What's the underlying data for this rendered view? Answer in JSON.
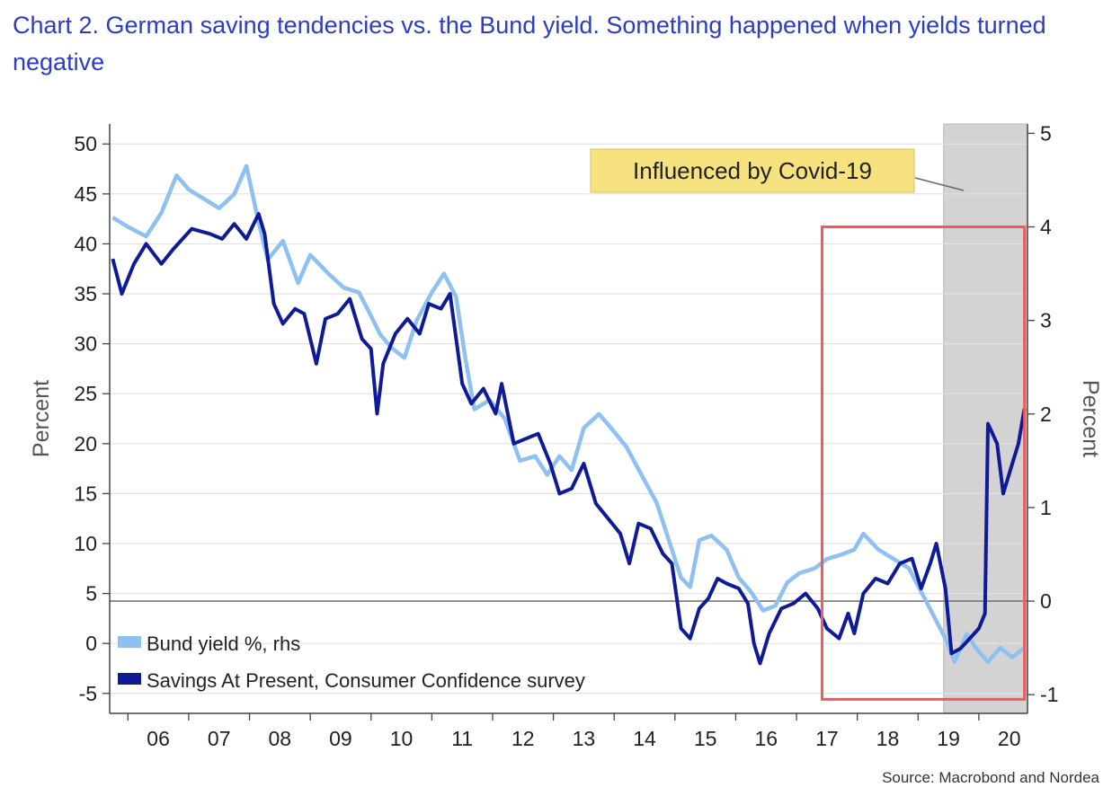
{
  "title": "Chart 2. German saving tendencies vs. the Bund yield. Something happened when yields turned negative",
  "source": "Source: Macrobond and Nordea",
  "chart_data": {
    "type": "line",
    "title": "Chart 2. German saving tendencies vs. the Bund yield. Something happened when yields turned negative",
    "ylabel_left": "Percent",
    "ylabel_right": "Percent",
    "ylim_left": [
      -7,
      52
    ],
    "ylim_right": [
      -1.2,
      5.1
    ],
    "left_ticks": [
      50,
      45,
      40,
      35,
      30,
      25,
      20,
      15,
      10,
      5,
      0,
      -5
    ],
    "right_ticks": [
      5,
      4,
      3,
      2,
      1,
      0,
      -1
    ],
    "x_tick_labels": [
      "06",
      "07",
      "08",
      "09",
      "10",
      "11",
      "12",
      "13",
      "14",
      "15",
      "16",
      "17",
      "18",
      "19",
      "20"
    ],
    "x_range": [
      2005.7,
      2020.8
    ],
    "zero_line_right": 0,
    "legend": [
      {
        "label": "Bund yield %, rhs",
        "color": "#8ec1f2"
      },
      {
        "label": "Savings At Present, Consumer Confidence survey",
        "color": "#0f1b96"
      }
    ],
    "annotations": [
      {
        "text": "Influenced by Covid-19",
        "shaded_from": 2019.42,
        "shaded_to": 2020.8
      },
      {
        "type": "highlight_box",
        "from": 2017.42,
        "to": 2020.75,
        "y_top": 4.0,
        "y_bottom": -1.05
      }
    ],
    "series": [
      {
        "name": "Bund yield %, rhs",
        "axis": "right",
        "color": "#8ec1f2",
        "points": [
          [
            2005.75,
            4.1
          ],
          [
            2006.0,
            4.0
          ],
          [
            2006.3,
            3.9
          ],
          [
            2006.55,
            4.15
          ],
          [
            2006.8,
            4.55
          ],
          [
            2007.0,
            4.4
          ],
          [
            2007.25,
            4.3
          ],
          [
            2007.5,
            4.2
          ],
          [
            2007.75,
            4.35
          ],
          [
            2007.95,
            4.65
          ],
          [
            2008.15,
            4.05
          ],
          [
            2008.3,
            3.65
          ],
          [
            2008.55,
            3.85
          ],
          [
            2008.8,
            3.4
          ],
          [
            2009.0,
            3.7
          ],
          [
            2009.3,
            3.5
          ],
          [
            2009.55,
            3.35
          ],
          [
            2009.8,
            3.3
          ],
          [
            2010.0,
            3.05
          ],
          [
            2010.15,
            2.85
          ],
          [
            2010.35,
            2.7
          ],
          [
            2010.55,
            2.6
          ],
          [
            2010.75,
            3.0
          ],
          [
            2011.0,
            3.3
          ],
          [
            2011.2,
            3.5
          ],
          [
            2011.4,
            3.25
          ],
          [
            2011.55,
            2.6
          ],
          [
            2011.7,
            2.05
          ],
          [
            2011.95,
            2.15
          ],
          [
            2012.2,
            1.95
          ],
          [
            2012.45,
            1.5
          ],
          [
            2012.7,
            1.55
          ],
          [
            2012.9,
            1.35
          ],
          [
            2013.1,
            1.55
          ],
          [
            2013.3,
            1.4
          ],
          [
            2013.5,
            1.85
          ],
          [
            2013.75,
            2.0
          ],
          [
            2013.95,
            1.85
          ],
          [
            2014.2,
            1.65
          ],
          [
            2014.45,
            1.35
          ],
          [
            2014.7,
            1.05
          ],
          [
            2014.9,
            0.65
          ],
          [
            2015.1,
            0.25
          ],
          [
            2015.25,
            0.15
          ],
          [
            2015.4,
            0.65
          ],
          [
            2015.6,
            0.7
          ],
          [
            2015.85,
            0.55
          ],
          [
            2016.05,
            0.25
          ],
          [
            2016.25,
            0.1
          ],
          [
            2016.45,
            -0.1
          ],
          [
            2016.65,
            -0.05
          ],
          [
            2016.85,
            0.2
          ],
          [
            2017.05,
            0.3
          ],
          [
            2017.3,
            0.35
          ],
          [
            2017.5,
            0.45
          ],
          [
            2017.75,
            0.5
          ],
          [
            2017.95,
            0.55
          ],
          [
            2018.1,
            0.72
          ],
          [
            2018.35,
            0.55
          ],
          [
            2018.6,
            0.45
          ],
          [
            2018.85,
            0.35
          ],
          [
            2019.05,
            0.1
          ],
          [
            2019.25,
            -0.15
          ],
          [
            2019.45,
            -0.4
          ],
          [
            2019.6,
            -0.65
          ],
          [
            2019.8,
            -0.35
          ],
          [
            2019.95,
            -0.5
          ],
          [
            2020.15,
            -0.65
          ],
          [
            2020.35,
            -0.5
          ],
          [
            2020.55,
            -0.6
          ],
          [
            2020.75,
            -0.5
          ]
        ]
      },
      {
        "name": "Savings At Present, Consumer Confidence survey",
        "axis": "left",
        "color": "#0f1b96",
        "points": [
          [
            2005.75,
            38.5
          ],
          [
            2005.9,
            35.0
          ],
          [
            2006.1,
            38.0
          ],
          [
            2006.3,
            40.0
          ],
          [
            2006.55,
            38.0
          ],
          [
            2006.75,
            39.5
          ],
          [
            2006.9,
            40.5
          ],
          [
            2007.05,
            41.5
          ],
          [
            2007.35,
            41.0
          ],
          [
            2007.55,
            40.5
          ],
          [
            2007.75,
            42.0
          ],
          [
            2007.95,
            40.5
          ],
          [
            2008.15,
            43.0
          ],
          [
            2008.25,
            41.0
          ],
          [
            2008.4,
            34.0
          ],
          [
            2008.55,
            32.0
          ],
          [
            2008.75,
            33.5
          ],
          [
            2008.9,
            33.0
          ],
          [
            2009.1,
            28.0
          ],
          [
            2009.25,
            32.5
          ],
          [
            2009.45,
            33.0
          ],
          [
            2009.65,
            34.5
          ],
          [
            2009.85,
            30.5
          ],
          [
            2010.0,
            29.5
          ],
          [
            2010.1,
            23.0
          ],
          [
            2010.2,
            28.0
          ],
          [
            2010.4,
            31.0
          ],
          [
            2010.6,
            32.5
          ],
          [
            2010.8,
            31.0
          ],
          [
            2010.95,
            34.0
          ],
          [
            2011.15,
            33.5
          ],
          [
            2011.3,
            35.0
          ],
          [
            2011.5,
            26.0
          ],
          [
            2011.65,
            24.0
          ],
          [
            2011.85,
            25.5
          ],
          [
            2012.05,
            23.0
          ],
          [
            2012.15,
            26.0
          ],
          [
            2012.35,
            20.0
          ],
          [
            2012.55,
            20.5
          ],
          [
            2012.75,
            21.0
          ],
          [
            2012.95,
            18.0
          ],
          [
            2013.1,
            15.0
          ],
          [
            2013.3,
            15.5
          ],
          [
            2013.5,
            18.0
          ],
          [
            2013.7,
            14.0
          ],
          [
            2013.9,
            12.5
          ],
          [
            2014.1,
            11.0
          ],
          [
            2014.25,
            8.0
          ],
          [
            2014.4,
            12.0
          ],
          [
            2014.6,
            11.5
          ],
          [
            2014.8,
            9.0
          ],
          [
            2014.95,
            8.0
          ],
          [
            2015.1,
            1.5
          ],
          [
            2015.25,
            0.5
          ],
          [
            2015.4,
            3.5
          ],
          [
            2015.55,
            4.5
          ],
          [
            2015.7,
            6.5
          ],
          [
            2015.85,
            6.0
          ],
          [
            2016.05,
            5.5
          ],
          [
            2016.2,
            4.0
          ],
          [
            2016.3,
            0.0
          ],
          [
            2016.4,
            -2.0
          ],
          [
            2016.55,
            1.0
          ],
          [
            2016.75,
            3.5
          ],
          [
            2016.95,
            4.0
          ],
          [
            2017.15,
            5.0
          ],
          [
            2017.35,
            3.5
          ],
          [
            2017.5,
            1.5
          ],
          [
            2017.7,
            0.5
          ],
          [
            2017.85,
            3.0
          ],
          [
            2017.95,
            1.0
          ],
          [
            2018.1,
            5.0
          ],
          [
            2018.3,
            6.5
          ],
          [
            2018.5,
            6.0
          ],
          [
            2018.7,
            8.0
          ],
          [
            2018.9,
            8.5
          ],
          [
            2019.05,
            5.5
          ],
          [
            2019.2,
            8.0
          ],
          [
            2019.3,
            10.0
          ],
          [
            2019.45,
            5.5
          ],
          [
            2019.55,
            -1.0
          ],
          [
            2019.7,
            -0.5
          ],
          [
            2019.85,
            0.5
          ],
          [
            2020.0,
            1.5
          ],
          [
            2020.1,
            3.0
          ],
          [
            2020.15,
            22.0
          ],
          [
            2020.3,
            20.0
          ],
          [
            2020.4,
            15.0
          ],
          [
            2020.55,
            18.0
          ],
          [
            2020.65,
            20.0
          ],
          [
            2020.75,
            23.5
          ]
        ]
      }
    ]
  }
}
